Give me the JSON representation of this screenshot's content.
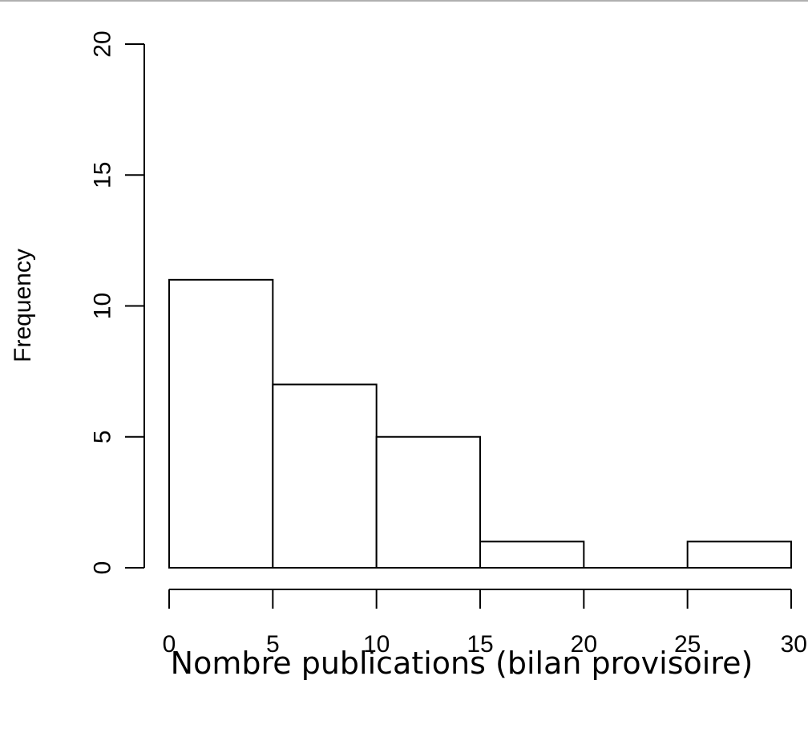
{
  "chart_data": {
    "type": "bar",
    "bins": [
      {
        "from": 0,
        "to": 5,
        "count": 11
      },
      {
        "from": 5,
        "to": 10,
        "count": 7
      },
      {
        "from": 10,
        "to": 15,
        "count": 5
      },
      {
        "from": 15,
        "to": 20,
        "count": 1
      },
      {
        "from": 20,
        "to": 25,
        "count": 0
      },
      {
        "from": 25,
        "to": 30,
        "count": 1
      }
    ],
    "title": "",
    "xlabel": "Nombre publications (bilan provisoire)",
    "ylabel": "Frequency",
    "xlim": [
      0,
      30
    ],
    "ylim": [
      0,
      20
    ],
    "xticks": [
      "0",
      "5",
      "10",
      "15",
      "20",
      "25",
      "30"
    ],
    "yticks": [
      "0",
      "5",
      "10",
      "15",
      "20"
    ],
    "grid": false,
    "bar_fill": "#ffffff",
    "bar_stroke": "#000000"
  }
}
